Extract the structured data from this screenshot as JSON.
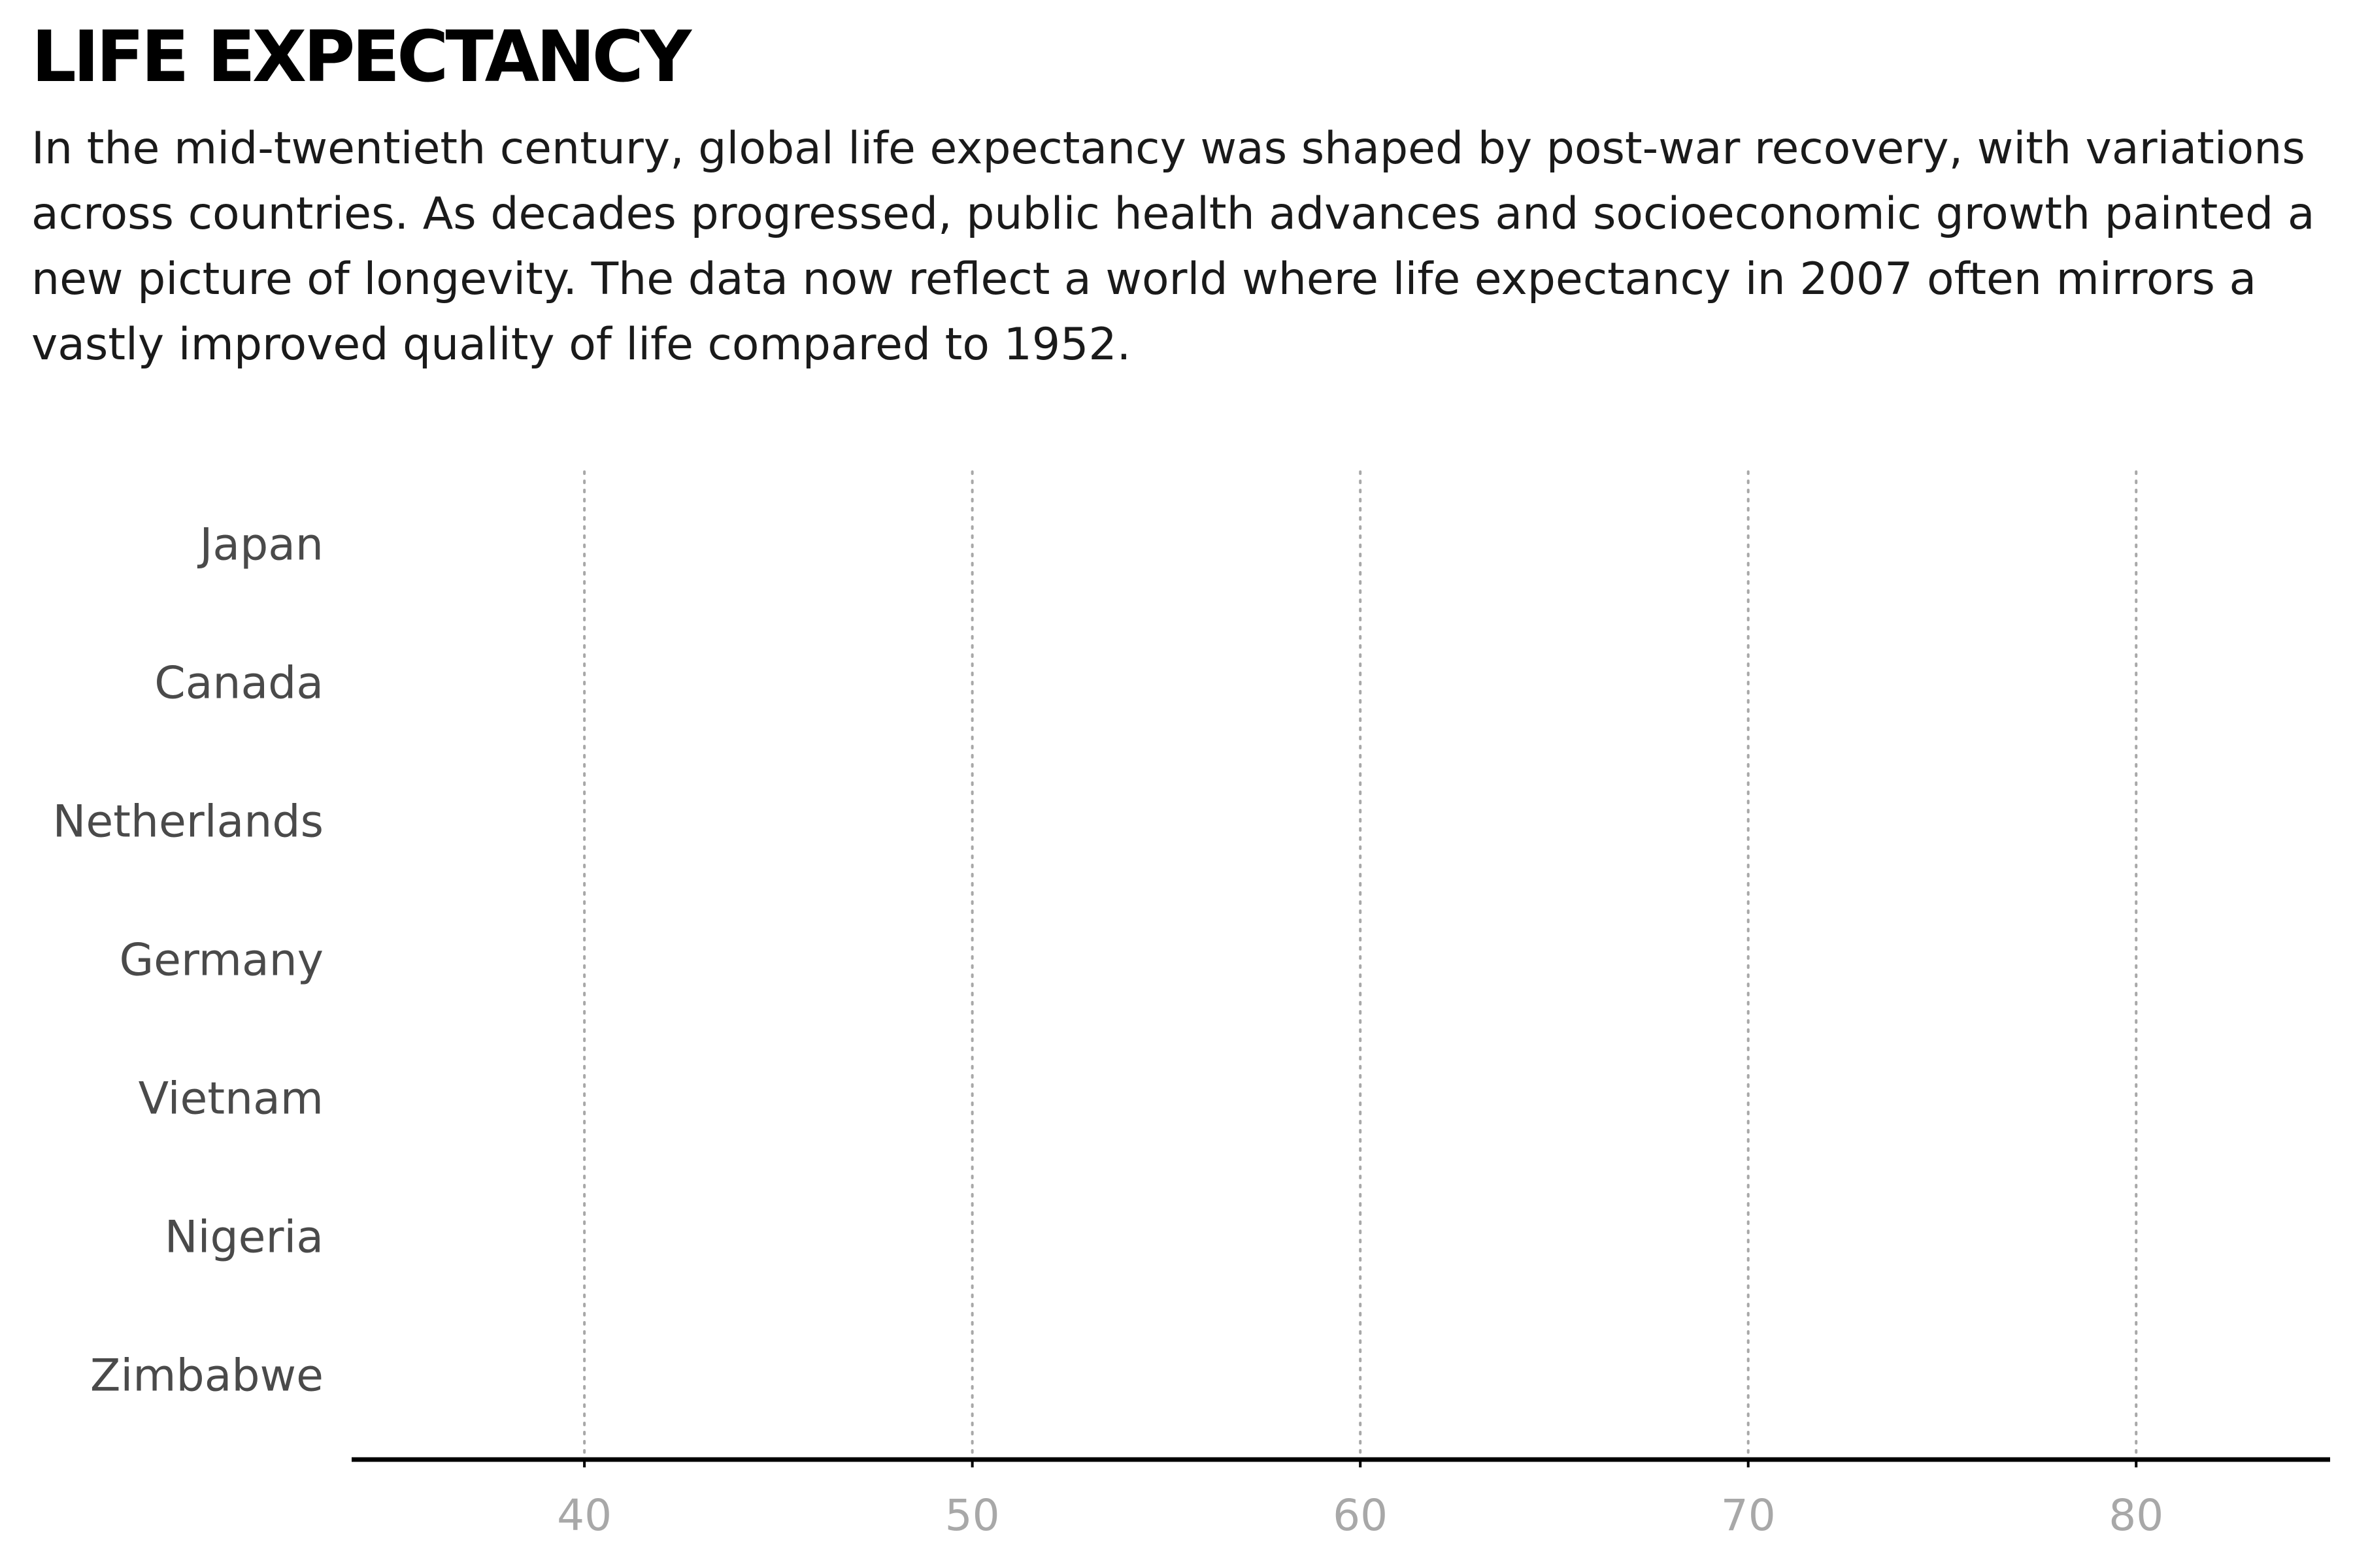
{
  "header": {
    "title": "LIFE EXPECTANCY",
    "subtitle": "In the mid-twentieth century, global life expectancy was shaped by post-war recovery, with variations across countries. As decades progressed, public health advances and socioeconomic growth painted a new picture of longevity. The data now reflect a world where life expectancy in 2007 often mirrors a vastly improved quality of life compared to 1952."
  },
  "chart_data": {
    "type": "scatter",
    "title": "LIFE EXPECTANCY",
    "categories": [
      "Japan",
      "Canada",
      "Netherlands",
      "Germany",
      "Vietnam",
      "Nigeria",
      "Zimbabwe"
    ],
    "xlim": [
      34,
      85
    ],
    "xticks": [
      40,
      50,
      60,
      70,
      80
    ],
    "xlabel": "",
    "ylabel": "",
    "grid": "vertical dotted",
    "series": [],
    "colors": {
      "grid": "#a8a8a8",
      "tick_label": "#a8a8a8",
      "category_label": "#4a4a4a",
      "axis": "#000000"
    }
  }
}
